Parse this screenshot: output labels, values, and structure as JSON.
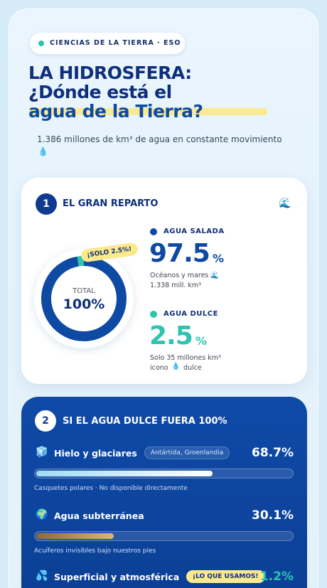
{
  "header": {
    "badge": "CIENCIAS DE LA TIERRA · ESO",
    "title_line1": "LA HIDROSFERA:",
    "title_line2": "¿Dónde está el",
    "title_line3": "agua de la Tierra?",
    "subtitle": "1.386 millones de km³ de agua en constante movimiento"
  },
  "reparto": {
    "number": "1",
    "title": "EL GRAN REPARTO",
    "donut_label": "TOTAL",
    "donut_total": "100%",
    "callout": "¡SOLO 2.5%!",
    "items": [
      {
        "name": "AGUA SALADA",
        "value": 97.5,
        "unit": "%",
        "note_line1": "Océanos y mares",
        "note_line2": "1.338 mill. km³",
        "color": "#0e4aa3"
      },
      {
        "name": "AGUA DULCE",
        "value": 2.5,
        "unit": "%",
        "note_line1": "Solo 35 millones km³",
        "note_line2a": "icono",
        "note_line2b": "dulce",
        "color": "#2ec4b0"
      }
    ]
  },
  "dulce": {
    "number": "2",
    "title": "SI EL AGUA DULCE FUERA 100%",
    "items": [
      {
        "name": "Hielo y glaciares",
        "tag": "Antártida, Groenlandia",
        "value": 68.7,
        "value_label": "68.7%",
        "note": "Casquetes polares · No disponible directamente"
      },
      {
        "name": "Agua subterránea",
        "value": 30.1,
        "value_label": "30.1%",
        "note": "Acuíferos invisibles bajo nuestros pies"
      },
      {
        "name": "Superficial y atmosférica",
        "tag": "¡LO QUE USAMOS!",
        "value": 1.2,
        "value_label": "1.2%"
      }
    ]
  }
}
